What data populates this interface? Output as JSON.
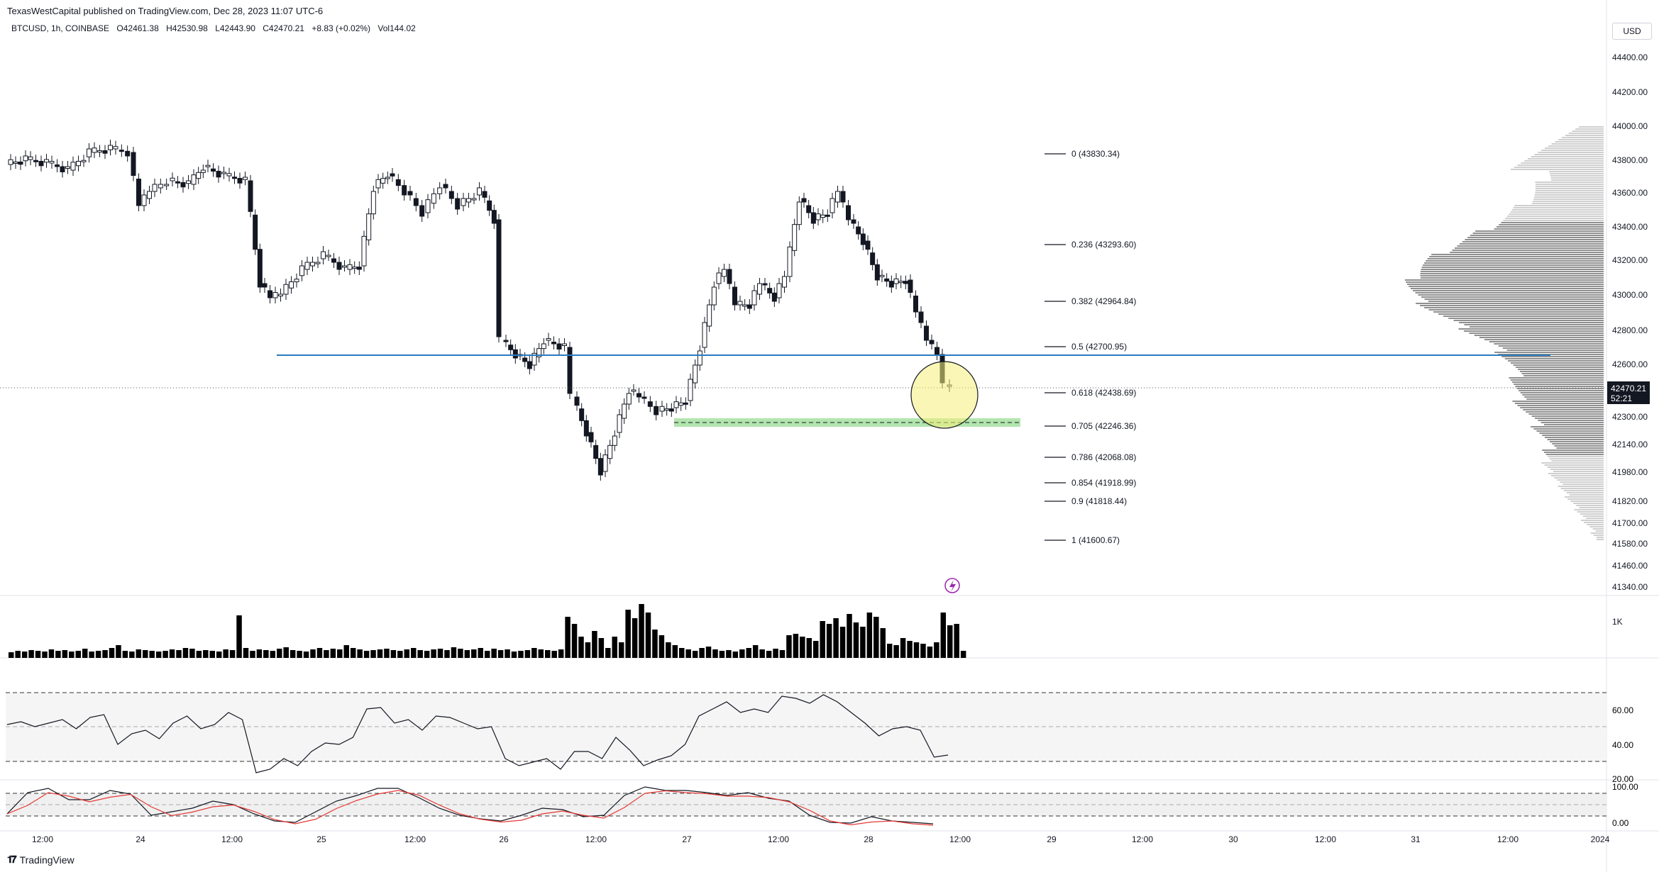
{
  "header": {
    "publish_line": "TexasWestCapital published on TradingView.com, Dec 28, 2023 11:07 UTC-6"
  },
  "symbol_bar": {
    "symbol": "BTCUSD, 1h, COINBASE",
    "open": "O42461.38",
    "high": "H42530.98",
    "low": "L42443.90",
    "close": "C42470.21",
    "change": "+8.83 (+0.02%)",
    "volume": "Vol144.02"
  },
  "price_scale": {
    "currency_button": "USD",
    "ticks": [
      "44400.00",
      "44200.00",
      "44000.00",
      "43800.00",
      "43600.00",
      "43400.00",
      "43200.00",
      "43000.00",
      "42800.00",
      "42600.00",
      "42300.00",
      "42140.00",
      "41980.00",
      "41820.00",
      "41700.00",
      "41580.00",
      "41460.00",
      "41340.00"
    ],
    "last_price": "42470.21",
    "countdown": "52:21"
  },
  "volume_scale": {
    "tick": "1K"
  },
  "rsi_scale": {
    "ticks": [
      "60.00",
      "40.00",
      "20.00"
    ]
  },
  "stoch_scale": {
    "ticks": [
      "100.00",
      "0.00"
    ]
  },
  "time_axis": {
    "labels": [
      "12:00",
      "24",
      "12:00",
      "25",
      "12:00",
      "26",
      "12:00",
      "27",
      "12:00",
      "28",
      "12:00",
      "29",
      "12:00",
      "30",
      "12:00",
      "31",
      "12:00",
      "2024"
    ]
  },
  "fib_levels": [
    {
      "label": "0 (43830.34)"
    },
    {
      "label": "0.236 (43293.60)"
    },
    {
      "label": "0.382 (42964.84)"
    },
    {
      "label": "0.5 (42700.95)"
    },
    {
      "label": "0.618 (42438.69)"
    },
    {
      "label": "0.705 (42246.36)"
    },
    {
      "label": "0.786 (42068.08)"
    },
    {
      "label": "0.854 (41918.99)"
    },
    {
      "label": "0.9 (41818.44)"
    },
    {
      "label": "1 (41600.67)"
    }
  ],
  "colors": {
    "horizontal_line": "#2a7ac0",
    "support_zone": "#a5e0a0",
    "highlight_circle": "#f5f07a",
    "rsi_line": "#131722",
    "stoch_k": "#131722",
    "stoch_d": "#e53935",
    "volume_bars": "#000000",
    "volume_profile": "#9e9e9e"
  },
  "brand": {
    "name": "TradingView"
  }
}
